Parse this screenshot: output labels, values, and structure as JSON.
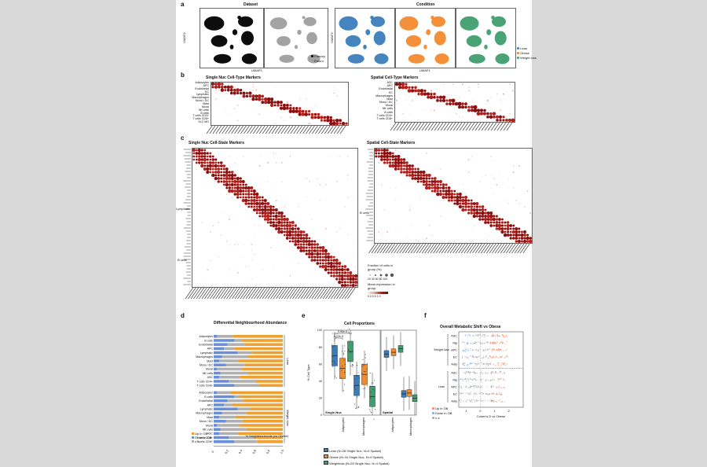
{
  "panel_a": {
    "label": "a",
    "dataset_title": "Dataset",
    "condition_title": "Condition",
    "y_axis": "UMAP2",
    "x_axis": "UMAP1",
    "dataset_legend": [
      "Primary",
      "Emont"
    ],
    "condition_legend": [
      "Lean",
      "Obese",
      "Weight loss"
    ],
    "colors": {
      "primary": "#000000",
      "emont": "#9e9e9e",
      "lean": "#3b7dbb",
      "obese": "#f28a2e",
      "weightloss": "#3f9e6e"
    }
  },
  "panel_b": {
    "label": "b",
    "left_title": "Single Nuc Cell-Type Markers",
    "right_title": "Spatial Cell-Type Markers",
    "left_rows": [
      "Adipocytes",
      "APC",
      "Endothelial",
      "EC",
      "Lymphatic",
      "Macrophages",
      "Mono / DC",
      "Mast",
      "Mural",
      "NK cells",
      "B cells",
      "T cells CD4+",
      "T cells CD8+",
      "SLC MG"
    ],
    "right_rows": [
      "ASC",
      "APC",
      "Endothelial",
      "EC",
      "Macrophages",
      "Mast",
      "Mono / DC",
      "Mural",
      "NK cells",
      "B cells",
      "T cells CD4+",
      "T cells CD8+"
    ]
  },
  "panel_c": {
    "label": "c",
    "left_title": "Single Nuc Cell-State Markers",
    "right_title": "Spatial Cell-State Markers",
    "left_rows_visible": [
      "Lymphatic",
      "B cells"
    ],
    "right_rows_visible": [
      "B cells"
    ],
    "legend_fraction_title": "Fraction of cells in group (%)",
    "legend_fraction_ticks": "20 40 60 80 100",
    "legend_expr_title": "Mean expression in group",
    "legend_expr_ticks": "0.0  0.5  1.0"
  },
  "panel_d": {
    "label": "d",
    "title": "Differential Neighbourhood Abundance",
    "groups": [
      {
        "name": "Lean",
        "rows": [
          "Adipocytes",
          "B cells",
          "Endothelial",
          "APC",
          "Lymphatic",
          "Macrophages",
          "Mast",
          "Mono / DC",
          "Mural",
          "NK cells",
          "ASC",
          "T cells CD4+",
          "T cells CD8+"
        ]
      },
      {
        "name": "Weight loss",
        "rows": [
          "Adipocytes",
          "B cells",
          "Endothelial",
          "APC",
          "Lymphatic",
          "Macrophages",
          "Mast",
          "Mono / DC",
          "Mural",
          "NK cells",
          "ASC",
          "T cells CD4+",
          "T cells CD8+"
        ]
      }
    ],
    "x_ticks": [
      "0",
      "0.2",
      "0.4",
      "0.6",
      "0.8",
      "1.0"
    ],
    "x_label": "% Neighbourhoods (vs Obese)",
    "legend": [
      "Up in OB",
      "Down in OB",
      "n.s."
    ],
    "colors": {
      "up": "#f0a030",
      "down": "#6a8fd8",
      "ns": "#b0b0b0"
    }
  },
  "panel_e": {
    "label": "e",
    "title": "Cell Proportions",
    "y_label": "% Cell Type",
    "y_ticks": [
      "0",
      "20",
      "40",
      "60",
      "80",
      "100"
    ],
    "pvals": [
      "5.96e-6",
      "6.22e-5"
    ],
    "left_section": "Single-Nuc",
    "right_section": "Spatial",
    "categories": [
      "Adipocytes",
      "Macrophages"
    ],
    "legend": [
      "Lean (N=28 Single Nuc, N=4 Spatial)",
      "Obese (N=34 Single Nuc, N=4 Spatial)",
      "Weightloss (N=25 Single Nuc, N=4 Spatial)"
    ]
  },
  "panel_f": {
    "label": "f",
    "title": "Overall Metabolic Shift vs Obese",
    "groups": [
      {
        "name": "Weight loss",
        "rows": [
          "ASC",
          "Mφ",
          "APC",
          "EC",
          "Adip"
        ]
      },
      {
        "name": "Lean",
        "rows": [
          "ASC",
          "Mφ",
          "APC",
          "EC",
          "Adip"
        ]
      }
    ],
    "x_label": "Cohen's D vs Obese",
    "x_ticks": [
      "-1",
      "0",
      "1",
      "2"
    ],
    "legend": [
      "Up in OB",
      "Down in OB",
      "n.s."
    ]
  }
}
